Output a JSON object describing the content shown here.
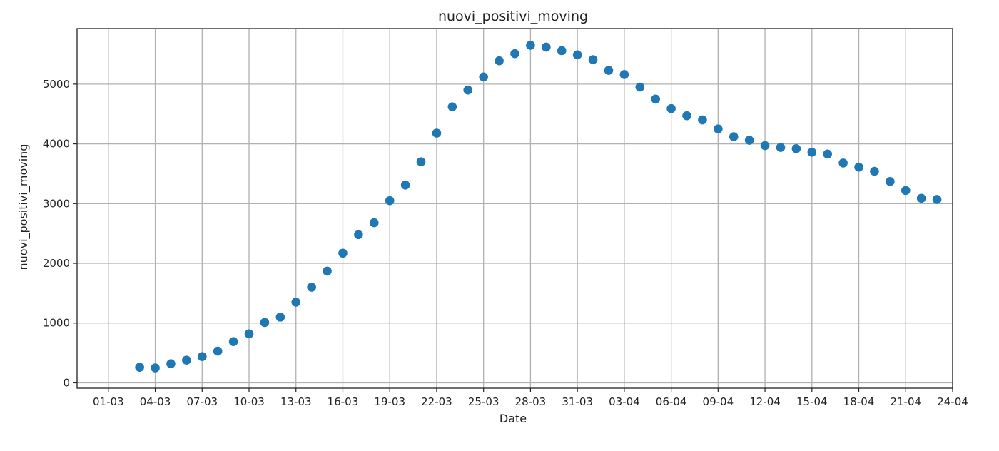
{
  "chart_data": {
    "type": "scatter",
    "title": "nuovi_positivi_moving",
    "xlabel": "Date",
    "ylabel": "nuovi_positivi_moving",
    "x_tick_labels": [
      "01-03",
      "04-03",
      "07-03",
      "10-03",
      "13-03",
      "16-03",
      "19-03",
      "22-03",
      "25-03",
      "28-03",
      "31-03",
      "03-04",
      "06-04",
      "09-04",
      "12-04",
      "15-04",
      "18-04",
      "21-04",
      "24-04"
    ],
    "y_ticks": [
      0,
      1000,
      2000,
      3000,
      4000,
      5000
    ],
    "ylim": [
      -90,
      5930
    ],
    "xlim": [
      "2020-02-28",
      "2020-04-24"
    ],
    "grid": true,
    "marker_color": "#1f77b4",
    "series": [
      {
        "x": [
          "2020-03-03",
          "2020-03-04",
          "2020-03-05",
          "2020-03-06",
          "2020-03-07",
          "2020-03-08",
          "2020-03-09",
          "2020-03-10",
          "2020-03-11",
          "2020-03-12",
          "2020-03-13",
          "2020-03-14",
          "2020-03-15",
          "2020-03-16",
          "2020-03-17",
          "2020-03-18",
          "2020-03-19",
          "2020-03-20",
          "2020-03-21",
          "2020-03-22",
          "2020-03-23",
          "2020-03-24",
          "2020-03-25",
          "2020-03-26",
          "2020-03-27",
          "2020-03-28",
          "2020-03-29",
          "2020-03-30",
          "2020-03-31",
          "2020-04-01",
          "2020-04-02",
          "2020-04-03",
          "2020-04-04",
          "2020-04-05",
          "2020-04-06",
          "2020-04-07",
          "2020-04-08",
          "2020-04-09",
          "2020-04-10",
          "2020-04-11",
          "2020-04-12",
          "2020-04-13",
          "2020-04-14",
          "2020-04-15",
          "2020-04-16",
          "2020-04-17",
          "2020-04-18",
          "2020-04-19",
          "2020-04-20",
          "2020-04-21",
          "2020-04-22",
          "2020-04-23"
        ],
        "y": [
          260,
          250,
          320,
          380,
          440,
          530,
          690,
          820,
          1010,
          1100,
          1350,
          1600,
          1870,
          2170,
          2480,
          2680,
          3050,
          3310,
          3700,
          4180,
          4620,
          4900,
          5120,
          5390,
          5510,
          5650,
          5620,
          5560,
          5490,
          5410,
          5230,
          5160,
          4950,
          4750,
          4590,
          4470,
          4400,
          4250,
          4120,
          4060,
          3970,
          3940,
          3920,
          3860,
          3830,
          3680,
          3610,
          3540,
          3370,
          3220,
          3090,
          3070
        ]
      }
    ]
  }
}
